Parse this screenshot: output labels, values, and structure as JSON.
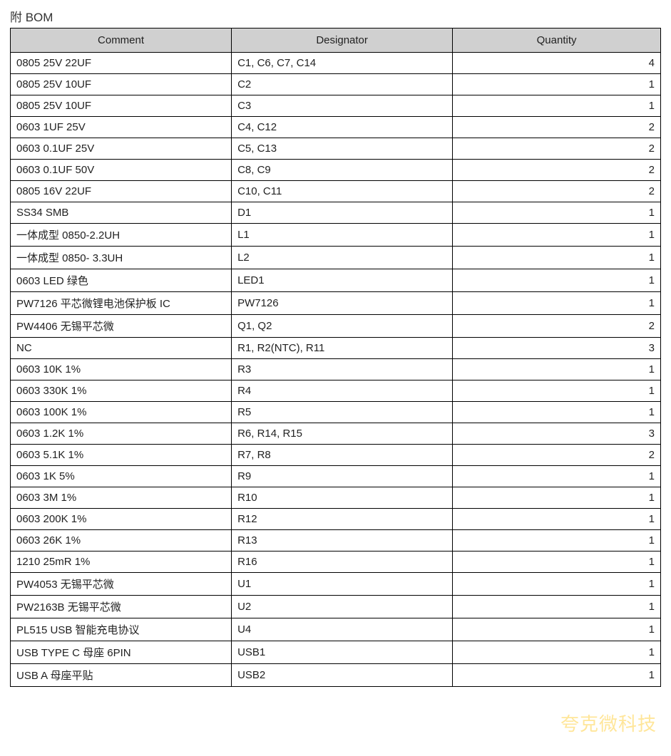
{
  "title": "附 BOM",
  "watermark": "夸克微科技",
  "table": {
    "header_background": "#d0d0d0",
    "border_color": "#000000",
    "text_color": "#222222",
    "font_size": 15,
    "columns": [
      {
        "key": "comment",
        "label": "Comment",
        "width_pct": 34,
        "align": "left"
      },
      {
        "key": "designator",
        "label": "Designator",
        "width_pct": 34,
        "align": "left"
      },
      {
        "key": "quantity",
        "label": "Quantity",
        "width_pct": 32,
        "align": "right"
      }
    ],
    "rows": [
      {
        "comment": "0805 25V   22UF",
        "designator": "C1, C6, C7, C14",
        "quantity": "4"
      },
      {
        "comment": "0805 25V 10UF",
        "designator": "C2",
        "quantity": "1"
      },
      {
        "comment": "0805 25V   10UF",
        "designator": "C3",
        "quantity": "1"
      },
      {
        "comment": "0603 1UF   25V",
        "designator": "C4, C12",
        "quantity": "2"
      },
      {
        "comment": "0603 0.1UF   25V",
        "designator": "C5, C13",
        "quantity": "2"
      },
      {
        "comment": "0603 0.1UF   50V",
        "designator": "C8, C9",
        "quantity": "2"
      },
      {
        "comment": "0805 16V   22UF",
        "designator": "C10, C11",
        "quantity": "2"
      },
      {
        "comment": "SS34   SMB",
        "designator": "D1",
        "quantity": "1"
      },
      {
        "comment": "一体成型 0850-2.2UH",
        "designator": "L1",
        "quantity": "1"
      },
      {
        "comment": "一体成型 0850- 3.3UH",
        "designator": "L2",
        "quantity": "1"
      },
      {
        "comment": "0603 LED  绿色",
        "designator": "LED1",
        "quantity": "1"
      },
      {
        "comment": "PW7126 平芯微锂电池保护板 IC",
        "designator": "PW7126",
        "quantity": "1"
      },
      {
        "comment": "PW4406 无锡平芯微",
        "designator": "Q1, Q2",
        "quantity": "2"
      },
      {
        "comment": "NC",
        "designator": "R1, R2(NTC), R11",
        "quantity": "3"
      },
      {
        "comment": "0603 10K 1%",
        "designator": "R3",
        "quantity": "1"
      },
      {
        "comment": "0603 330K 1%",
        "designator": "R4",
        "quantity": "1"
      },
      {
        "comment": "0603 100K 1%",
        "designator": "R5",
        "quantity": "1"
      },
      {
        "comment": "0603 1.2K   1%",
        "designator": "R6, R14, R15",
        "quantity": "3"
      },
      {
        "comment": "0603 5.1K 1%",
        "designator": "R7, R8",
        "quantity": "2"
      },
      {
        "comment": "0603 1K 5%",
        "designator": "R9",
        "quantity": "1"
      },
      {
        "comment": "0603 3M 1%",
        "designator": "R10",
        "quantity": "1"
      },
      {
        "comment": "0603 200K 1%",
        "designator": "R12",
        "quantity": "1"
      },
      {
        "comment": "0603 26K 1%",
        "designator": "R13",
        "quantity": "1"
      },
      {
        "comment": "1210 25mR 1%",
        "designator": "R16",
        "quantity": "1"
      },
      {
        "comment": "PW4053 无锡平芯微",
        "designator": "U1",
        "quantity": "1"
      },
      {
        "comment": "PW2163B 无锡平芯微",
        "designator": "U2",
        "quantity": "1"
      },
      {
        "comment": "PL515 USB 智能充电协议",
        "designator": "U4",
        "quantity": "1"
      },
      {
        "comment": "USB TYPE C  母座 6PIN",
        "designator": "USB1",
        "quantity": "1"
      },
      {
        "comment": "USB A 母座平贴",
        "designator": "USB2",
        "quantity": "1"
      }
    ]
  }
}
